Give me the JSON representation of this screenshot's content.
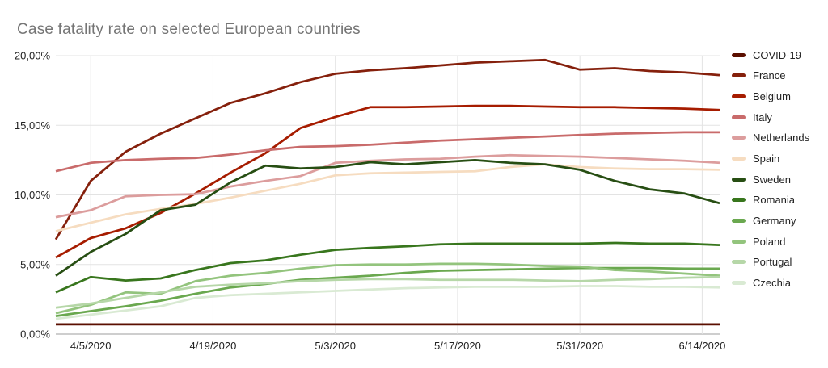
{
  "title": "Case fatality rate on selected European countries",
  "y_axis": {
    "tick_labels": [
      "0,00%",
      "5,00%",
      "10,00%",
      "15,00%",
      "20,00%"
    ]
  },
  "x_axis": {
    "tick_labels": [
      "4/5/2020",
      "4/19/2020",
      "5/3/2020",
      "5/17/2020",
      "5/31/2020",
      "6/14/2020"
    ]
  },
  "legend": {
    "position": "right",
    "items": [
      {
        "label": "COVID-19",
        "color": "#5b0f00"
      },
      {
        "label": "France",
        "color": "#85200c"
      },
      {
        "label": "Belgium",
        "color": "#a61c00"
      },
      {
        "label": "Italy",
        "color": "#c96b6b"
      },
      {
        "label": "Netherlands",
        "color": "#dc9d9d"
      },
      {
        "label": "Spain",
        "color": "#f6dcc0"
      },
      {
        "label": "Sweden",
        "color": "#274e13"
      },
      {
        "label": "Romania",
        "color": "#38761d"
      },
      {
        "label": "Germany",
        "color": "#6aa84f"
      },
      {
        "label": "Poland",
        "color": "#93c47d"
      },
      {
        "label": "Portugal",
        "color": "#b6d7a8"
      },
      {
        "label": "Czechia",
        "color": "#d9ead3"
      }
    ]
  },
  "chart_data": {
    "type": "line",
    "title": "Case fatality rate on selected European countries",
    "xlabel": "",
    "ylabel": "",
    "ylim": [
      0,
      20
    ],
    "grid": true,
    "legend_position": "right",
    "y_tick_values": [
      0,
      5,
      10,
      15,
      20
    ],
    "y_tick_labels": [
      "0,00%",
      "5,00%",
      "10,00%",
      "15,00%",
      "20,00%"
    ],
    "x_dates": [
      "4/1/2020",
      "4/5/2020",
      "4/9/2020",
      "4/13/2020",
      "4/17/2020",
      "4/21/2020",
      "4/25/2020",
      "4/29/2020",
      "5/3/2020",
      "5/7/2020",
      "5/11/2020",
      "5/15/2020",
      "5/19/2020",
      "5/23/2020",
      "5/27/2020",
      "5/31/2020",
      "6/4/2020",
      "6/8/2020",
      "6/12/2020",
      "6/16/2020"
    ],
    "x_day_offsets": [
      0,
      4,
      8,
      12,
      16,
      20,
      24,
      28,
      32,
      36,
      40,
      44,
      48,
      52,
      56,
      60,
      64,
      68,
      72,
      76
    ],
    "x_total_days": 76,
    "x_tick_labels": [
      "4/5/2020",
      "4/19/2020",
      "5/3/2020",
      "5/17/2020",
      "5/31/2020",
      "6/14/2020"
    ],
    "x_tick_day_offsets": [
      4,
      18,
      32,
      46,
      60,
      74
    ],
    "unit": "percent",
    "series": [
      {
        "name": "COVID-19",
        "color": "#5b0f00",
        "values": [
          0.7,
          0.7,
          0.7,
          0.7,
          0.7,
          0.7,
          0.7,
          0.7,
          0.7,
          0.7,
          0.7,
          0.7,
          0.7,
          0.7,
          0.7,
          0.7,
          0.7,
          0.7,
          0.7,
          0.7
        ]
      },
      {
        "name": "France",
        "color": "#85200c",
        "values": [
          6.8,
          11.0,
          13.1,
          14.4,
          15.5,
          16.6,
          17.3,
          18.1,
          18.7,
          18.95,
          19.1,
          19.3,
          19.5,
          19.6,
          19.7,
          19.0,
          19.1,
          18.9,
          18.8,
          18.6
        ]
      },
      {
        "name": "Belgium",
        "color": "#a61c00",
        "values": [
          5.5,
          6.9,
          7.6,
          8.7,
          10.1,
          11.6,
          13.0,
          14.8,
          15.6,
          16.3,
          16.3,
          16.35,
          16.4,
          16.4,
          16.35,
          16.3,
          16.3,
          16.25,
          16.2,
          16.1
        ]
      },
      {
        "name": "Italy",
        "color": "#c96b6b",
        "values": [
          11.7,
          12.3,
          12.5,
          12.6,
          12.65,
          12.9,
          13.2,
          13.45,
          13.5,
          13.6,
          13.75,
          13.9,
          14.0,
          14.1,
          14.2,
          14.3,
          14.4,
          14.45,
          14.5,
          14.5
        ]
      },
      {
        "name": "Netherlands",
        "color": "#dc9d9d",
        "values": [
          8.4,
          8.9,
          9.9,
          10.0,
          10.05,
          10.6,
          11.0,
          11.35,
          12.3,
          12.45,
          12.55,
          12.6,
          12.75,
          12.85,
          12.8,
          12.75,
          12.65,
          12.55,
          12.45,
          12.3
        ]
      },
      {
        "name": "Spain",
        "color": "#f6dcc0",
        "values": [
          7.4,
          8.0,
          8.6,
          9.0,
          9.35,
          9.8,
          10.3,
          10.8,
          11.4,
          11.55,
          11.6,
          11.65,
          11.7,
          12.0,
          12.2,
          12.0,
          11.9,
          11.85,
          11.85,
          11.8
        ]
      },
      {
        "name": "Sweden",
        "color": "#274e13",
        "values": [
          4.2,
          5.9,
          7.2,
          8.9,
          9.3,
          10.9,
          12.1,
          11.9,
          12.0,
          12.35,
          12.2,
          12.35,
          12.5,
          12.3,
          12.2,
          11.8,
          11.0,
          10.4,
          10.1,
          9.4
        ]
      },
      {
        "name": "Romania",
        "color": "#38761d",
        "values": [
          3.0,
          4.1,
          3.85,
          4.0,
          4.6,
          5.1,
          5.3,
          5.7,
          6.05,
          6.2,
          6.3,
          6.45,
          6.5,
          6.5,
          6.5,
          6.5,
          6.55,
          6.5,
          6.5,
          6.4
        ]
      },
      {
        "name": "Germany",
        "color": "#6aa84f",
        "values": [
          1.3,
          1.65,
          2.0,
          2.4,
          2.9,
          3.35,
          3.6,
          3.9,
          4.05,
          4.2,
          4.4,
          4.55,
          4.6,
          4.65,
          4.7,
          4.75,
          4.75,
          4.75,
          4.7,
          4.7
        ]
      },
      {
        "name": "Poland",
        "color": "#93c47d",
        "values": [
          1.5,
          2.1,
          3.0,
          2.9,
          3.8,
          4.2,
          4.4,
          4.7,
          4.95,
          5.0,
          5.0,
          5.05,
          5.05,
          5.0,
          4.9,
          4.85,
          4.6,
          4.5,
          4.35,
          4.2
        ]
      },
      {
        "name": "Portugal",
        "color": "#b6d7a8",
        "values": [
          1.9,
          2.2,
          2.6,
          3.0,
          3.4,
          3.55,
          3.65,
          3.8,
          3.9,
          3.95,
          3.95,
          3.9,
          3.9,
          3.9,
          3.85,
          3.8,
          3.9,
          3.95,
          4.05,
          4.1
        ]
      },
      {
        "name": "Czechia",
        "color": "#d9ead3",
        "values": [
          1.1,
          1.4,
          1.7,
          2.0,
          2.6,
          2.8,
          2.9,
          3.0,
          3.1,
          3.2,
          3.3,
          3.35,
          3.4,
          3.4,
          3.4,
          3.45,
          3.45,
          3.4,
          3.4,
          3.35
        ]
      }
    ]
  },
  "style": {
    "grid_color": "#e3e3e3",
    "axis_color": "#9e9e9e",
    "title_color": "#757575",
    "tick_label_color": "#222222",
    "background": "#ffffff"
  }
}
